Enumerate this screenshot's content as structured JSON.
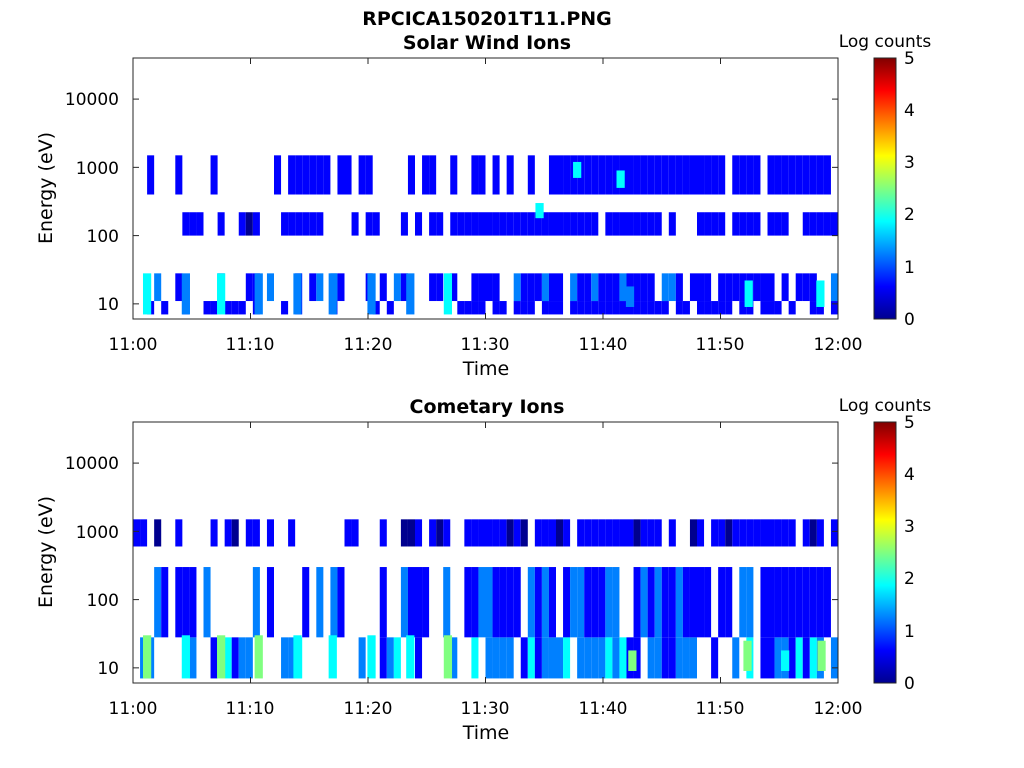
{
  "figure": {
    "title": "RPCICA150201T11.PNG"
  },
  "colormap": [
    "#00008f",
    "#0000ff",
    "#0080ff",
    "#00ffff",
    "#80ff80",
    "#ffff00",
    "#ff8000",
    "#ff0000",
    "#800000"
  ],
  "chart_data": [
    {
      "type": "heatmap",
      "title": "Solar Wind Ions",
      "xlabel": "Time",
      "ylabel": "Energy (eV)",
      "xticks": [
        "11:00",
        "11:10",
        "11:20",
        "11:30",
        "11:40",
        "11:50",
        "12:00"
      ],
      "xlim_minutes": [
        0,
        60
      ],
      "yscale": "log",
      "ylim": [
        6,
        40000
      ],
      "yticks": [
        "10",
        "100",
        "1000",
        "10000"
      ],
      "colorbar": {
        "label": "Log counts",
        "range": [
          0,
          5
        ],
        "ticks": [
          "0",
          "1",
          "2",
          "3",
          "4",
          "5"
        ]
      },
      "bands": [
        {
          "e_min": 7,
          "e_max": 11,
          "value": 0.6
        },
        {
          "e_min": 11,
          "e_max": 28,
          "value": 0.8
        },
        {
          "e_min": 100,
          "e_max": 220,
          "value": 0.5
        },
        {
          "e_min": 400,
          "e_max": 1500,
          "value": 0.6
        }
      ],
      "spikes": [
        {
          "t": 1.2,
          "e_min": 7,
          "e_max": 28,
          "value": 1.6
        },
        {
          "t": 4.5,
          "e_min": 7,
          "e_max": 28,
          "value": 1.4
        },
        {
          "t": 7.5,
          "e_min": 7,
          "e_max": 28,
          "value": 1.6
        },
        {
          "t": 10.7,
          "e_min": 7,
          "e_max": 28,
          "value": 1.3
        },
        {
          "t": 14.0,
          "e_min": 7,
          "e_max": 28,
          "value": 1.5
        },
        {
          "t": 17.0,
          "e_min": 7,
          "e_max": 28,
          "value": 1.3
        },
        {
          "t": 20.3,
          "e_min": 7,
          "e_max": 28,
          "value": 1.4
        },
        {
          "t": 23.6,
          "e_min": 7,
          "e_max": 28,
          "value": 1.3
        },
        {
          "t": 26.8,
          "e_min": 7,
          "e_max": 28,
          "value": 1.8
        },
        {
          "t": 52.4,
          "e_min": 9,
          "e_max": 22,
          "value": 2.0
        },
        {
          "t": 58.5,
          "e_min": 9,
          "e_max": 22,
          "value": 1.8
        },
        {
          "t": 42.3,
          "e_min": 9,
          "e_max": 18,
          "value": 1.4
        },
        {
          "t": 41.5,
          "e_min": 500,
          "e_max": 900,
          "value": 1.7
        },
        {
          "t": 37.8,
          "e_min": 700,
          "e_max": 1200,
          "value": 1.9
        },
        {
          "t": 34.6,
          "e_min": 180,
          "e_max": 300,
          "value": 1.8
        }
      ]
    },
    {
      "type": "heatmap",
      "title": "Cometary Ions",
      "xlabel": "Time",
      "ylabel": "Energy (eV)",
      "xticks": [
        "11:00",
        "11:10",
        "11:20",
        "11:30",
        "11:40",
        "11:50",
        "12:00"
      ],
      "xlim_minutes": [
        0,
        60
      ],
      "yscale": "log",
      "ylim": [
        6,
        40000
      ],
      "yticks": [
        "10",
        "100",
        "1000",
        "10000"
      ],
      "colorbar": {
        "label": "Log counts",
        "range": [
          0,
          5
        ],
        "ticks": [
          "0",
          "1",
          "2",
          "3",
          "4",
          "5"
        ]
      },
      "bands": [
        {
          "e_min": 7,
          "e_max": 28,
          "value": 1.3
        },
        {
          "e_min": 28,
          "e_max": 300,
          "value": 0.9
        },
        {
          "e_min": 600,
          "e_max": 1500,
          "value": 0.4
        }
      ],
      "spikes": [
        {
          "t": 1.2,
          "e_min": 7,
          "e_max": 30,
          "value": 2.2
        },
        {
          "t": 4.5,
          "e_min": 7,
          "e_max": 30,
          "value": 2.0
        },
        {
          "t": 7.5,
          "e_min": 7,
          "e_max": 30,
          "value": 2.3
        },
        {
          "t": 10.7,
          "e_min": 7,
          "e_max": 30,
          "value": 2.2
        },
        {
          "t": 14.0,
          "e_min": 7,
          "e_max": 30,
          "value": 2.1
        },
        {
          "t": 17.0,
          "e_min": 7,
          "e_max": 30,
          "value": 2.0
        },
        {
          "t": 20.3,
          "e_min": 7,
          "e_max": 30,
          "value": 2.1
        },
        {
          "t": 23.6,
          "e_min": 7,
          "e_max": 30,
          "value": 2.0
        },
        {
          "t": 26.8,
          "e_min": 7,
          "e_max": 30,
          "value": 2.6
        },
        {
          "t": 42.5,
          "e_min": 9,
          "e_max": 18,
          "value": 2.3
        },
        {
          "t": 52.3,
          "e_min": 9,
          "e_max": 25,
          "value": 2.5
        },
        {
          "t": 55.5,
          "e_min": 9,
          "e_max": 18,
          "value": 2.0
        },
        {
          "t": 58.6,
          "e_min": 9,
          "e_max": 25,
          "value": 2.4
        }
      ]
    }
  ]
}
